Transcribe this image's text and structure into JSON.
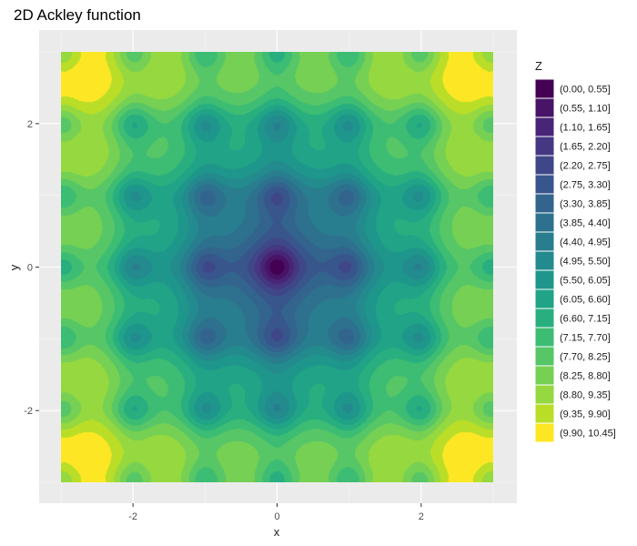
{
  "chart_data": {
    "type": "filled-contour",
    "title": "2D Ackley function",
    "xlabel": "x",
    "ylabel": "y",
    "function": "-20*exp(-0.2*sqrt(0.5*(x^2+y^2))) - exp(0.5*(cos(2*pi*x)+cos(2*pi*y))) + e + 20",
    "xlim": [
      -3,
      3
    ],
    "ylim": [
      -3,
      3
    ],
    "x_ticks": [
      -2,
      0,
      2
    ],
    "y_ticks": [
      -2,
      0,
      2
    ],
    "x_tick_labels": [
      "-2",
      "0",
      "2"
    ],
    "y_tick_labels": [
      "-2",
      "0",
      "2"
    ],
    "grid": true,
    "legend_position": "right",
    "legend": {
      "title": "Z",
      "bins": [
        {
          "label": "(0.00, 0.55]",
          "lo": 0.0,
          "hi": 0.55,
          "color": "#440154"
        },
        {
          "label": "(0.55, 1.10]",
          "lo": 0.55,
          "hi": 1.1,
          "color": "#481467"
        },
        {
          "label": "(1.10, 1.65]",
          "lo": 1.1,
          "hi": 1.65,
          "color": "#482576"
        },
        {
          "label": "(1.65, 2.20]",
          "lo": 1.65,
          "hi": 2.2,
          "color": "#453781"
        },
        {
          "label": "(2.20, 2.75]",
          "lo": 2.2,
          "hi": 2.75,
          "color": "#3f4788"
        },
        {
          "label": "(2.75, 3.30]",
          "lo": 2.75,
          "hi": 3.3,
          "color": "#39568c"
        },
        {
          "label": "(3.30, 3.85]",
          "lo": 3.3,
          "hi": 3.85,
          "color": "#32648e"
        },
        {
          "label": "(3.85, 4.40]",
          "lo": 3.85,
          "hi": 4.4,
          "color": "#2d718e"
        },
        {
          "label": "(4.40, 4.95]",
          "lo": 4.4,
          "hi": 4.95,
          "color": "#287d8e"
        },
        {
          "label": "(4.95, 5.50]",
          "lo": 4.95,
          "hi": 5.5,
          "color": "#238a8d"
        },
        {
          "label": "(5.50, 6.05]",
          "lo": 5.5,
          "hi": 6.05,
          "color": "#1f968b"
        },
        {
          "label": "(6.05, 6.60]",
          "lo": 6.05,
          "hi": 6.6,
          "color": "#20a386"
        },
        {
          "label": "(6.60, 7.15]",
          "lo": 6.6,
          "hi": 7.15,
          "color": "#29af7f"
        },
        {
          "label": "(7.15, 7.70]",
          "lo": 7.15,
          "hi": 7.7,
          "color": "#3dbc74"
        },
        {
          "label": "(7.70, 8.25]",
          "lo": 7.7,
          "hi": 8.25,
          "color": "#56c667"
        },
        {
          "label": "(8.25, 8.80]",
          "lo": 8.25,
          "hi": 8.8,
          "color": "#75d054"
        },
        {
          "label": "(8.80, 9.35]",
          "lo": 8.8,
          "hi": 9.35,
          "color": "#95d840"
        },
        {
          "label": "(9.35, 9.90]",
          "lo": 9.35,
          "hi": 9.9,
          "color": "#bade28"
        },
        {
          "label": "(9.90, 10.45]",
          "lo": 9.9,
          "hi": 10.45,
          "color": "#fde725"
        }
      ]
    }
  }
}
